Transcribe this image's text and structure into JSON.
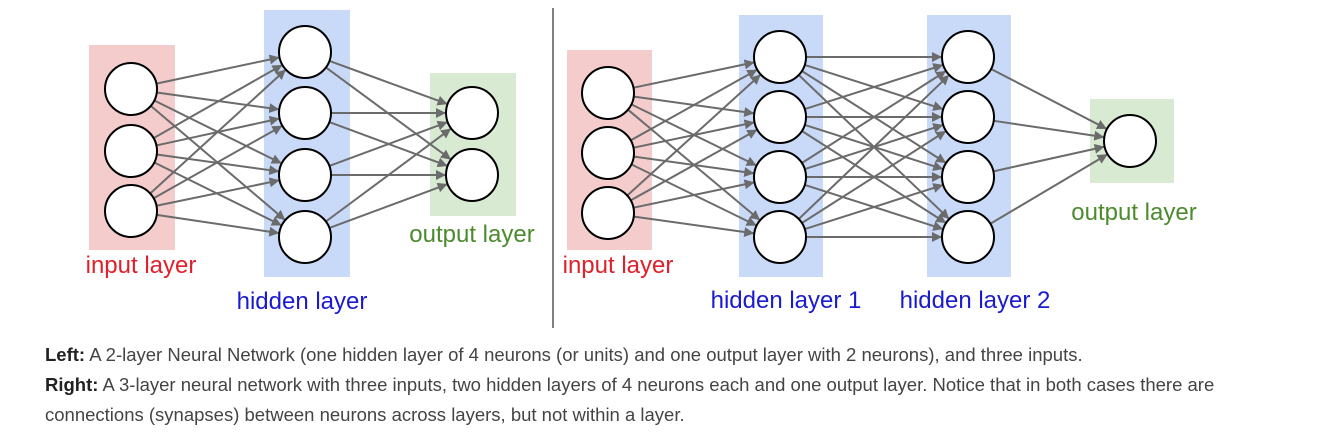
{
  "colors": {
    "input_band": "#f4cccc",
    "hidden_band": "#c9daf8",
    "output_band": "#d9ead3",
    "input_label": "#e0202a",
    "hidden_label": "#1a1ad0",
    "output_label": "#4b8b2e",
    "edge": "#6b6b6b",
    "node_stroke": "#000000",
    "divider": "#000000"
  },
  "diagrams": [
    {
      "layers": [
        {
          "role": "input",
          "neurons": 3,
          "label": "input layer"
        },
        {
          "role": "hidden",
          "neurons": 4,
          "label": "hidden layer"
        },
        {
          "role": "output",
          "neurons": 2,
          "label": "output layer"
        }
      ]
    },
    {
      "layers": [
        {
          "role": "input",
          "neurons": 3,
          "label": "input layer"
        },
        {
          "role": "hidden",
          "neurons": 4,
          "label": "hidden layer 1"
        },
        {
          "role": "hidden",
          "neurons": 4,
          "label": "hidden layer 2"
        },
        {
          "role": "output",
          "neurons": 1,
          "label": "output layer"
        }
      ]
    }
  ],
  "caption": {
    "left_heading": "Left:",
    "left_text": " A 2-layer Neural Network (one hidden layer of 4 neurons (or units) and one output layer with 2 neurons), and three inputs.",
    "right_heading": "Right:",
    "right_text": " A 3-layer neural network with three inputs, two hidden layers of 4 neurons each and one output layer. Notice that in both cases there are connections (synapses) between neurons across layers, but not within a layer."
  }
}
